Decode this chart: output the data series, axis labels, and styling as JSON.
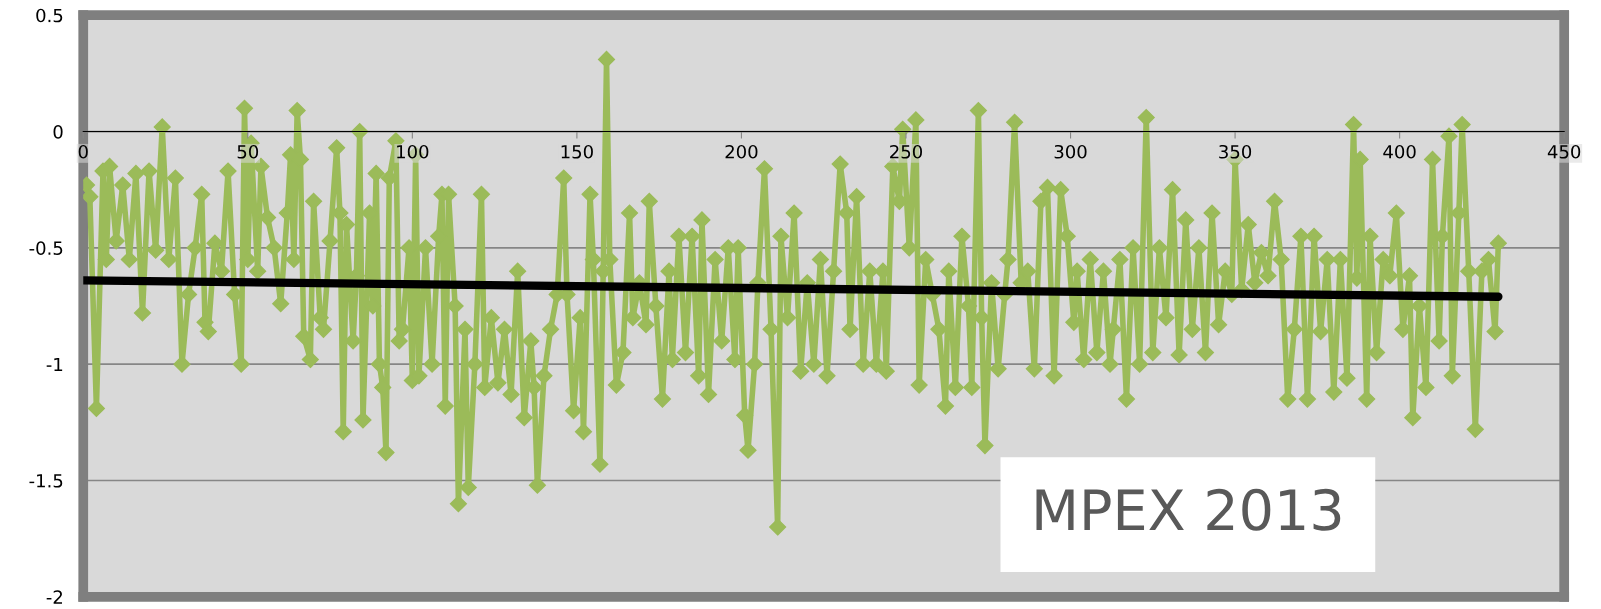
{
  "chart_data": {
    "type": "line",
    "xlim": [
      0,
      450
    ],
    "xticks": [
      0,
      50,
      100,
      150,
      200,
      250,
      300,
      350,
      400,
      450
    ],
    "ylim": [
      -2,
      0.5
    ],
    "yticks": [
      -2,
      -1.5,
      -1,
      -0.5,
      0,
      0.5
    ],
    "grid": "y",
    "marker": "diamond",
    "line_style": "solid",
    "annotations": [
      "MPEX 2013"
    ],
    "series": [
      {
        "color": "#9bbb59",
        "x": [
          1,
          2,
          4,
          6,
          7,
          8,
          10,
          12,
          14,
          16,
          18,
          20,
          22,
          24,
          26,
          28,
          30,
          32,
          34,
          36,
          37,
          38,
          40,
          42,
          44,
          46,
          48,
          49,
          50,
          51,
          53,
          54,
          56,
          58,
          60,
          62,
          63,
          64,
          65,
          66,
          67,
          69,
          70,
          72,
          73,
          75,
          77,
          78,
          79,
          80,
          82,
          83,
          84,
          85,
          87,
          88,
          89,
          90,
          91,
          92,
          93,
          95,
          96,
          97,
          99,
          100,
          101,
          102,
          104,
          106,
          108,
          109,
          110,
          111,
          113,
          114,
          116,
          117,
          119,
          121,
          122,
          124,
          126,
          128,
          130,
          132,
          134,
          136,
          137,
          138,
          140,
          142,
          144,
          146,
          147,
          149,
          151,
          152,
          154,
          155,
          157,
          158,
          159,
          160,
          162,
          164,
          166,
          167,
          169,
          171,
          172,
          174,
          176,
          178,
          179,
          181,
          183,
          185,
          187,
          188,
          190,
          192,
          194,
          196,
          198,
          199,
          201,
          202,
          204,
          205,
          207,
          209,
          211,
          212,
          214,
          216,
          218,
          220,
          222,
          224,
          226,
          228,
          230,
          232,
          233,
          235,
          237,
          239,
          241,
          243,
          244,
          246,
          248,
          249,
          251,
          253,
          254,
          256,
          258,
          260,
          262,
          263,
          265,
          267,
          269,
          270,
          272,
          273,
          274,
          276,
          278,
          280,
          281,
          283,
          285,
          287,
          289,
          291,
          293,
          295,
          297,
          299,
          301,
          302,
          304,
          306,
          308,
          310,
          312,
          313,
          315,
          317,
          319,
          321,
          323,
          325,
          327,
          329,
          331,
          333,
          335,
          337,
          339,
          341,
          343,
          345,
          347,
          349,
          350,
          352,
          354,
          356,
          358,
          360,
          362,
          364,
          366,
          368,
          370,
          372,
          374,
          376,
          378,
          380,
          382,
          384,
          386,
          387,
          388,
          390,
          391,
          393,
          395,
          397,
          399,
          401,
          403,
          404,
          406,
          408,
          410,
          412,
          413,
          415,
          416,
          418,
          419,
          421,
          423,
          425,
          427,
          429,
          430
        ],
        "values": [
          -0.23,
          -0.28,
          -1.19,
          -0.17,
          -0.55,
          -0.15,
          -0.47,
          -0.23,
          -0.55,
          -0.18,
          -0.78,
          -0.17,
          -0.51,
          0.02,
          -0.55,
          -0.2,
          -1.0,
          -0.7,
          -0.5,
          -0.27,
          -0.82,
          -0.86,
          -0.48,
          -0.6,
          -0.17,
          -0.7,
          -1.0,
          0.1,
          -0.55,
          -0.05,
          -0.6,
          -0.15,
          -0.37,
          -0.5,
          -0.74,
          -0.35,
          -0.1,
          -0.55,
          0.09,
          -0.12,
          -0.88,
          -0.98,
          -0.3,
          -0.8,
          -0.85,
          -0.47,
          -0.07,
          -0.35,
          -1.29,
          -0.4,
          -0.9,
          -0.62,
          0.0,
          -1.24,
          -0.35,
          -0.75,
          -0.18,
          -1.0,
          -1.1,
          -1.38,
          -0.2,
          -0.04,
          -0.9,
          -0.85,
          -0.5,
          -1.07,
          -0.1,
          -1.05,
          -0.5,
          -1.0,
          -0.45,
          -0.27,
          -1.18,
          -0.27,
          -0.75,
          -1.6,
          -0.85,
          -1.53,
          -1.0,
          -0.27,
          -1.1,
          -0.8,
          -1.08,
          -0.85,
          -1.13,
          -0.6,
          -1.23,
          -0.9,
          -1.1,
          -1.52,
          -1.05,
          -0.85,
          -0.7,
          -0.2,
          -0.7,
          -1.2,
          -0.8,
          -1.29,
          -0.27,
          -0.55,
          -1.43,
          -0.6,
          0.31,
          -0.55,
          -1.09,
          -0.95,
          -0.35,
          -0.8,
          -0.65,
          -0.83,
          -0.3,
          -0.75,
          -1.15,
          -0.6,
          -0.98,
          -0.45,
          -0.95,
          -0.45,
          -1.05,
          -0.38,
          -1.13,
          -0.55,
          -0.9,
          -0.5,
          -0.98,
          -0.5,
          -1.22,
          -1.37,
          -1.0,
          -0.65,
          -0.16,
          -0.85,
          -1.7,
          -0.45,
          -0.8,
          -0.35,
          -1.03,
          -0.65,
          -1.0,
          -0.55,
          -1.05,
          -0.6,
          -0.14,
          -0.35,
          -0.85,
          -0.28,
          -1.0,
          -0.6,
          -1.0,
          -0.6,
          -1.03,
          -0.15,
          -0.3,
          0.01,
          -0.5,
          0.05,
          -1.09,
          -0.55,
          -0.7,
          -0.85,
          -1.18,
          -0.6,
          -1.1,
          -0.45,
          -0.75,
          -1.1,
          0.09,
          -0.8,
          -1.35,
          -0.65,
          -1.02,
          -0.7,
          -0.55,
          0.04,
          -0.65,
          -0.6,
          -1.02,
          -0.3,
          -0.24,
          -1.05,
          -0.25,
          -0.45,
          -0.82,
          -0.6,
          -0.98,
          -0.55,
          -0.95,
          -0.6,
          -1.0,
          -0.85,
          -0.55,
          -1.15,
          -0.5,
          -1.0,
          0.06,
          -0.95,
          -0.5,
          -0.8,
          -0.25,
          -0.96,
          -0.38,
          -0.85,
          -0.5,
          -0.95,
          -0.35,
          -0.83,
          -0.6,
          -0.7,
          -0.12,
          -0.68,
          -0.4,
          -0.65,
          -0.52,
          -0.62,
          -0.3,
          -0.55,
          -1.15,
          -0.85,
          -0.45,
          -1.15,
          -0.45,
          -0.86,
          -0.55,
          -1.12,
          -0.55,
          -1.06,
          0.03,
          -0.63,
          -0.12,
          -1.15,
          -0.45,
          -0.95,
          -0.55,
          -0.62,
          -0.35,
          -0.85,
          -0.62,
          -1.23,
          -0.75,
          -1.1,
          -0.12,
          -0.9,
          -0.45,
          -0.02,
          -1.05,
          -0.35,
          0.03,
          -0.6,
          -1.28,
          -0.6,
          -0.55,
          -0.86,
          -0.48
        ]
      },
      {
        "type": "line",
        "color": "#000000",
        "marker": "none",
        "x": [
          0,
          430
        ],
        "values": [
          -0.64,
          -0.71
        ]
      }
    ]
  }
}
